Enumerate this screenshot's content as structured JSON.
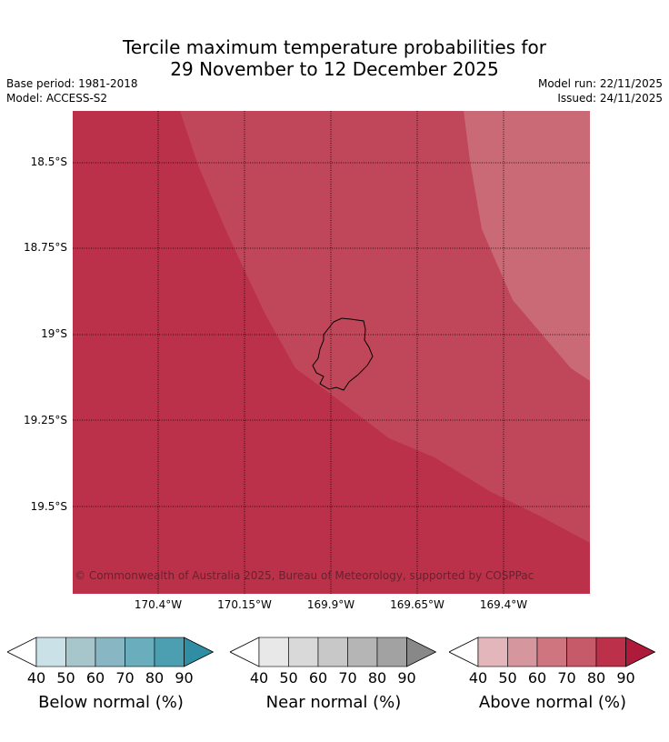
{
  "title_line1": "Tercile maximum temperature probabilities for",
  "title_line2": "29 November to 12 December 2025",
  "base_period": "Base period: 1981-2018",
  "model": "Model: ACCESS-S2",
  "model_run": "Model run: 22/11/2025",
  "issued": "Issued: 24/11/2025",
  "copyright": "© Commonwealth of Australia 2025, Bureau of Meteorology, supported by COSPPac",
  "lat_labels": [
    "18.5°S",
    "18.75°S",
    "19°S",
    "19.25°S",
    "19.5°S"
  ],
  "lon_labels": [
    "170.4°W",
    "170.15°W",
    "169.9°W",
    "169.65°W",
    "169.4°W"
  ],
  "colors": {
    "above_70": "#c0475a",
    "above_80": "#bb3149",
    "above_60": "#ca6a77",
    "outline": "#000000"
  },
  "colorbars": [
    {
      "label": "Below normal (%)",
      "ticks": [
        "40",
        "50",
        "60",
        "70",
        "80",
        "90"
      ],
      "colors": [
        "#c9e1e7",
        "#a6c6cc",
        "#89b6c3",
        "#6aaebe",
        "#4c9fb1",
        "#2f8ea3"
      ]
    },
    {
      "label": "Near normal (%)",
      "ticks": [
        "40",
        "50",
        "60",
        "70",
        "80",
        "90"
      ],
      "colors": [
        "#e8e8e8",
        "#d9d9d9",
        "#c8c8c8",
        "#b5b5b5",
        "#a2a2a2",
        "#888888"
      ]
    },
    {
      "label": "Above normal (%)",
      "ticks": [
        "40",
        "50",
        "60",
        "70",
        "80",
        "90"
      ],
      "colors": [
        "#e2b6bb",
        "#d6969d",
        "#cf7580",
        "#c65a69",
        "#bc3149",
        "#ad1a3a"
      ]
    }
  ]
}
